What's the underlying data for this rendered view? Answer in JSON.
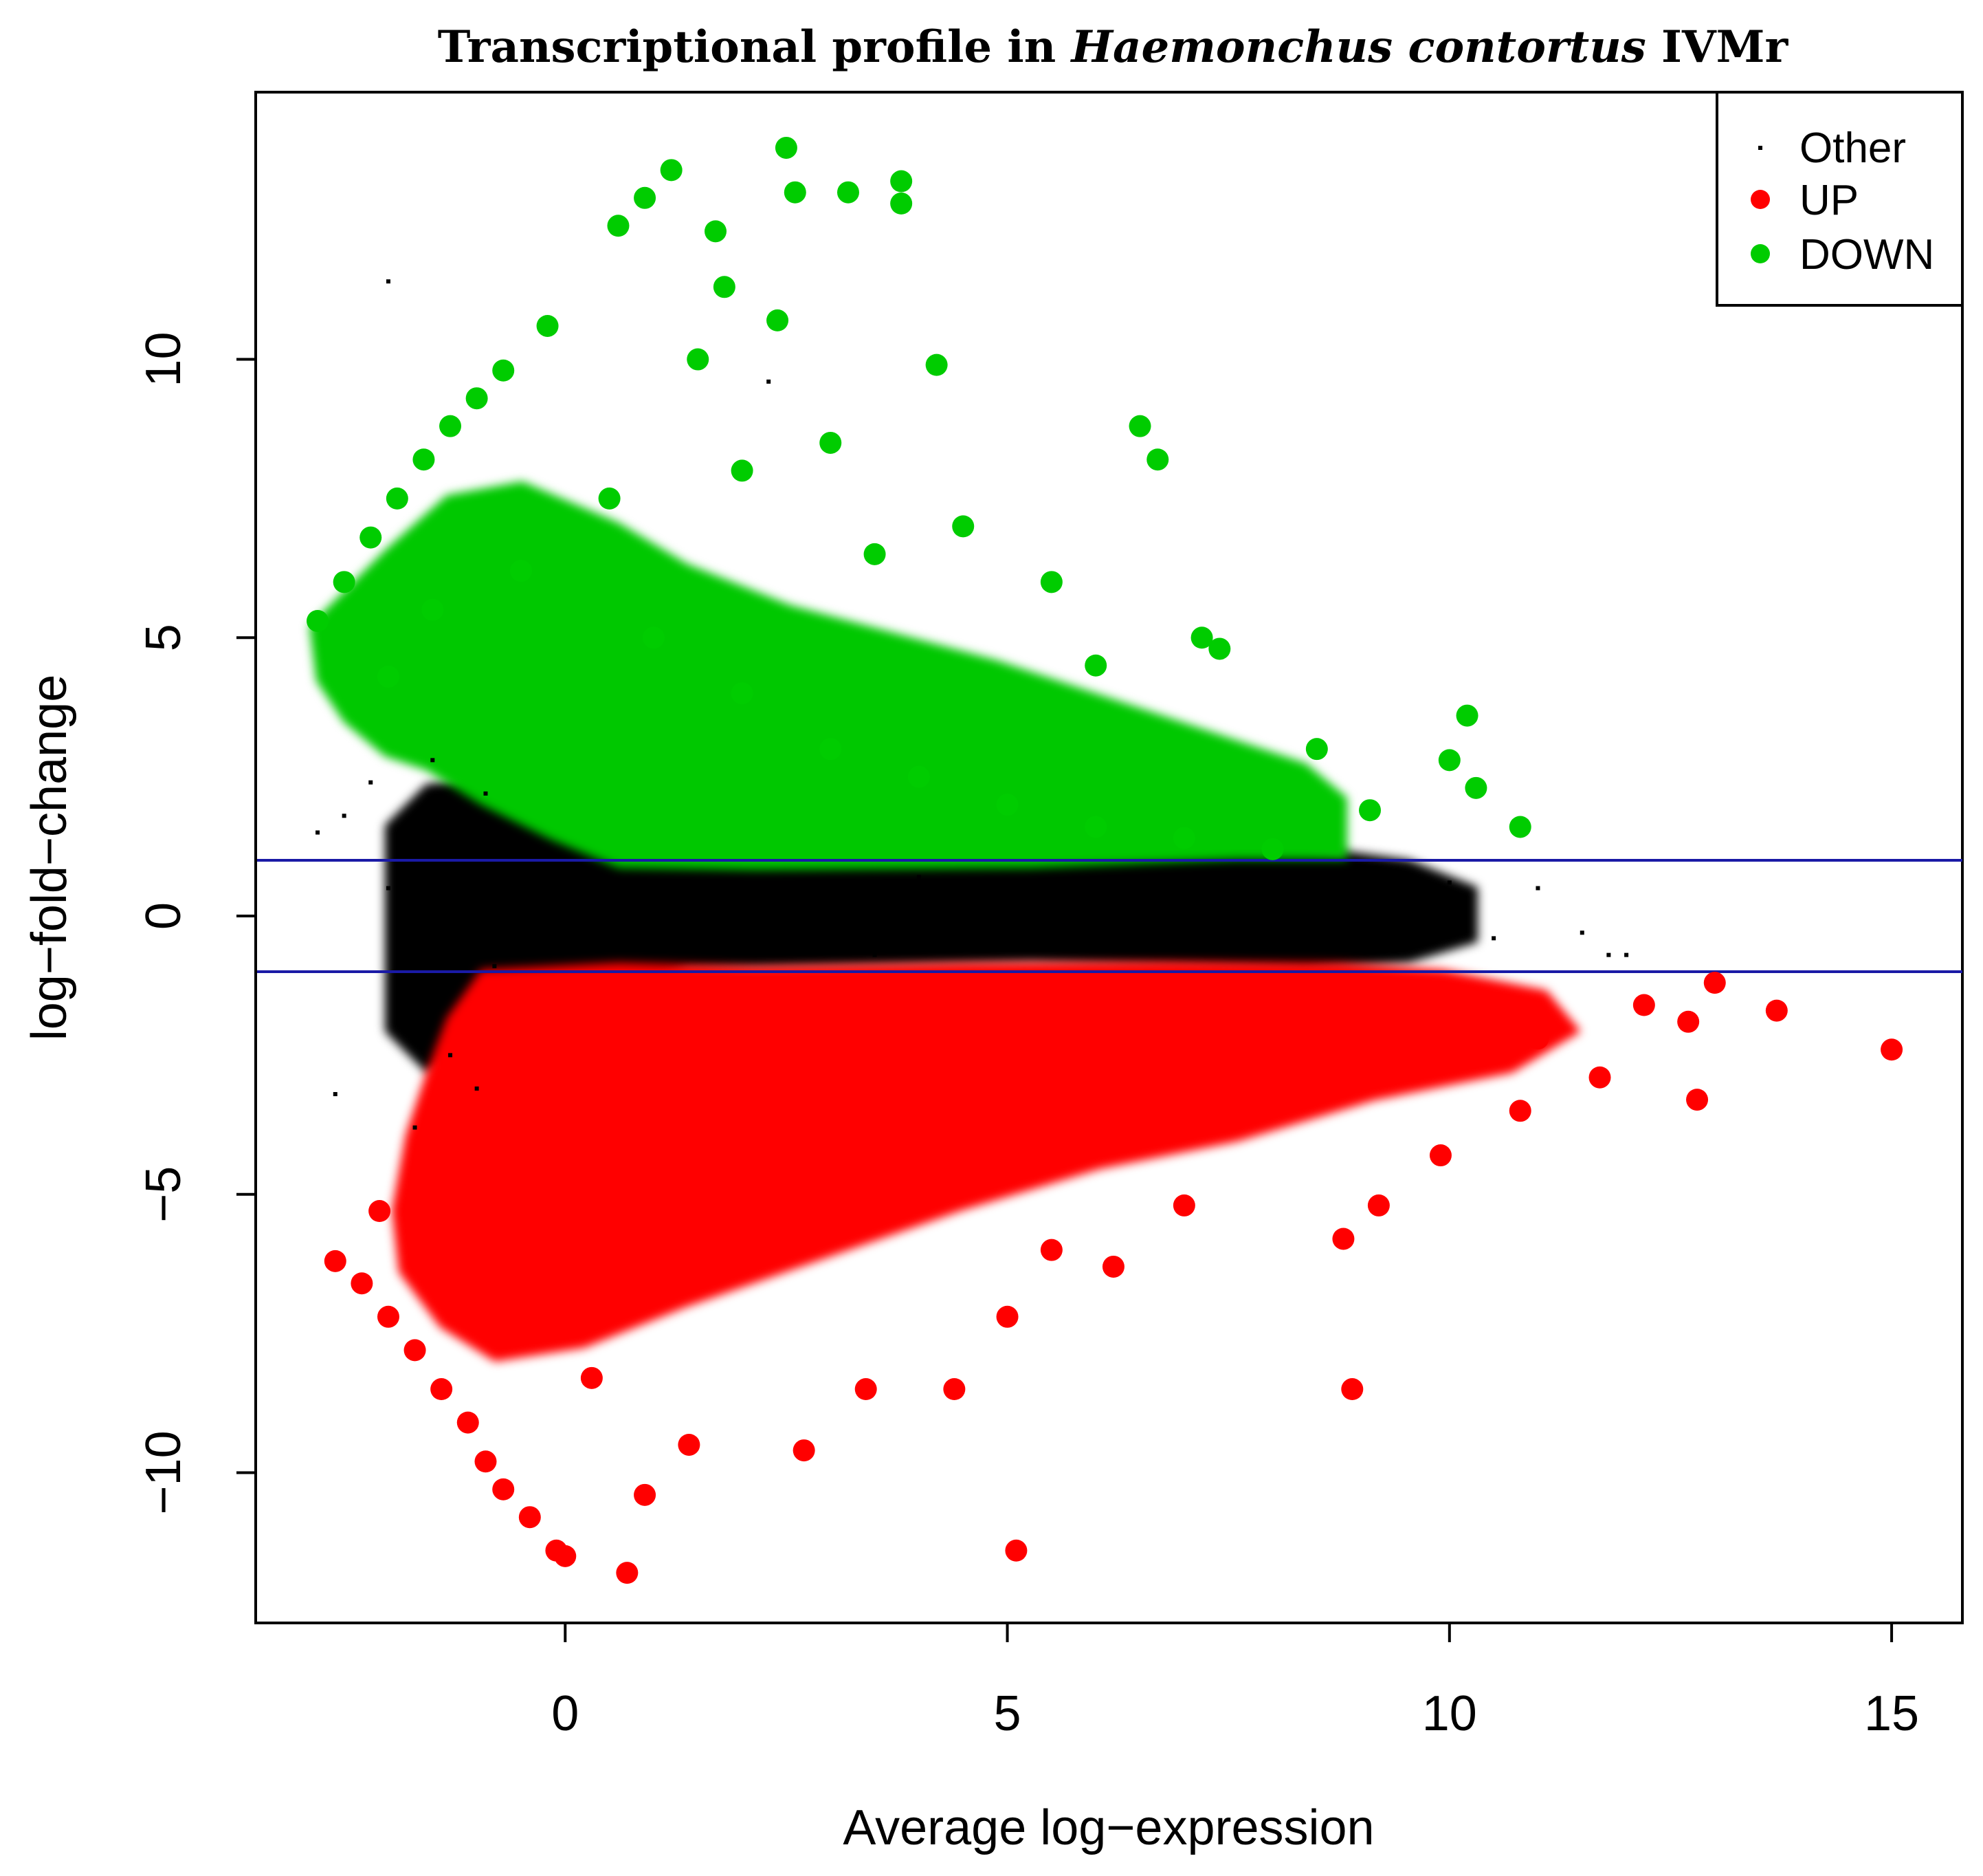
{
  "chart_data": {
    "type": "scatter",
    "title": {
      "prefix": "Transcriptional profile in ",
      "italic": "Haemonchus contortus",
      "suffix": " IVMr"
    },
    "xlabel": "Average log−expression",
    "ylabel": "log−fold−change",
    "xlim": [
      -3.5,
      15.8
    ],
    "ylim": [
      -12.7,
      14.8
    ],
    "x_ticks": [
      0,
      5,
      10,
      15
    ],
    "y_ticks": [
      -10,
      -5,
      0,
      5,
      10
    ],
    "x_tick_labels": [
      "0",
      "5",
      "10",
      "15"
    ],
    "y_tick_labels": [
      "−10",
      "−5",
      "0",
      "5",
      "10"
    ],
    "hlines": [
      1,
      -1
    ],
    "hline_color": "#1a1aa6",
    "legend": {
      "position": "top-right",
      "entries": [
        {
          "label": "Other",
          "color": "#000000",
          "marker": "small"
        },
        {
          "label": "UP",
          "color": "#ff0000",
          "marker": "large"
        },
        {
          "label": "DOWN",
          "color": "#00cc00",
          "marker": "large"
        }
      ]
    },
    "series": [
      {
        "name": "Other",
        "color": "#000000",
        "points": [
          [
            -2.8,
            1.5
          ],
          [
            -2.5,
            1.8
          ],
          [
            -2.2,
            2.4
          ],
          [
            -2.0,
            0.5
          ],
          [
            -1.8,
            -0.6
          ],
          [
            -1.6,
            -1.8
          ],
          [
            -1.5,
            2.8
          ],
          [
            -1.3,
            -2.5
          ],
          [
            -1.2,
            1.4
          ],
          [
            -1.0,
            -3.1
          ],
          [
            -0.9,
            2.2
          ],
          [
            -0.8,
            -0.9
          ],
          [
            -0.7,
            0.6
          ],
          [
            -0.5,
            -0.3
          ],
          [
            -0.3,
            0.8
          ],
          [
            0.0,
            -0.4
          ],
          [
            0.3,
            0.5
          ],
          [
            0.5,
            -0.6
          ],
          [
            1.0,
            0.3
          ],
          [
            1.5,
            -0.2
          ],
          [
            2.0,
            0.6
          ],
          [
            2.5,
            -0.5
          ],
          [
            3.0,
            0.4
          ],
          [
            3.5,
            -0.7
          ],
          [
            4.0,
            0.7
          ],
          [
            4.5,
            -0.4
          ],
          [
            5.0,
            0.2
          ],
          [
            5.5,
            -0.6
          ],
          [
            6.0,
            0.5
          ],
          [
            6.5,
            -0.3
          ],
          [
            7.0,
            0.6
          ],
          [
            7.5,
            -0.5
          ],
          [
            8.0,
            0.4
          ],
          [
            8.5,
            -0.6
          ],
          [
            9.0,
            0.3
          ],
          [
            9.5,
            -0.5
          ],
          [
            10.0,
            0.6
          ],
          [
            10.5,
            -0.4
          ],
          [
            11.0,
            0.5
          ],
          [
            11.5,
            -0.3
          ],
          [
            11.8,
            -0.7
          ],
          [
            12.0,
            -0.7
          ],
          [
            -2.0,
            11.4
          ],
          [
            2.3,
            9.6
          ],
          [
            -1.7,
            -3.8
          ],
          [
            -2.6,
            -3.2
          ]
        ]
      },
      {
        "name": "UP",
        "color": "#ff0000",
        "points": [
          [
            -2.6,
            -6.2
          ],
          [
            -2.3,
            -6.6
          ],
          [
            -2.0,
            -7.2
          ],
          [
            -1.7,
            -7.8
          ],
          [
            -1.4,
            -8.5
          ],
          [
            -1.1,
            -9.1
          ],
          [
            -0.9,
            -9.8
          ],
          [
            -0.7,
            -10.3
          ],
          [
            -0.4,
            -10.8
          ],
          [
            -0.1,
            -11.4
          ],
          [
            0.0,
            -11.5
          ],
          [
            0.7,
            -11.8
          ],
          [
            -2.1,
            -5.3
          ],
          [
            -1.6,
            -4.4
          ],
          [
            -1.2,
            -5.8
          ],
          [
            -0.6,
            -6.9
          ],
          [
            0.3,
            -8.3
          ],
          [
            0.9,
            -10.4
          ],
          [
            1.4,
            -9.5
          ],
          [
            2.7,
            -9.6
          ],
          [
            3.4,
            -8.5
          ],
          [
            4.4,
            -8.5
          ],
          [
            5.1,
            -11.4
          ],
          [
            5.0,
            -7.2
          ],
          [
            6.2,
            -6.3
          ],
          [
            8.9,
            -8.5
          ],
          [
            9.2,
            -5.2
          ],
          [
            9.9,
            -4.3
          ],
          [
            10.8,
            -3.5
          ],
          [
            11.7,
            -2.9
          ],
          [
            12.2,
            -1.6
          ],
          [
            12.8,
            -3.3
          ],
          [
            13.0,
            -1.2
          ],
          [
            13.7,
            -1.7
          ],
          [
            15.0,
            -2.4
          ],
          [
            11.0,
            -2.2
          ],
          [
            12.7,
            -1.9
          ],
          [
            2.0,
            -3.0
          ],
          [
            4.0,
            -4.5
          ],
          [
            6.0,
            -3.0
          ],
          [
            8.0,
            -2.0
          ],
          [
            10.0,
            -1.5
          ],
          [
            7.0,
            -5.2
          ],
          [
            1.0,
            -4.0
          ],
          [
            3.0,
            -5.5
          ],
          [
            5.5,
            -6.0
          ],
          [
            8.8,
            -5.8
          ]
        ]
      },
      {
        "name": "DOWN",
        "color": "#00cc00",
        "points": [
          [
            -2.8,
            5.3
          ],
          [
            -2.5,
            6.0
          ],
          [
            -2.2,
            6.8
          ],
          [
            -1.9,
            7.5
          ],
          [
            -1.6,
            8.2
          ],
          [
            -1.3,
            8.8
          ],
          [
            -1.0,
            9.3
          ],
          [
            -0.7,
            9.8
          ],
          [
            -0.2,
            10.6
          ],
          [
            0.6,
            12.4
          ],
          [
            0.9,
            12.9
          ],
          [
            1.2,
            13.4
          ],
          [
            2.5,
            13.8
          ],
          [
            2.6,
            13.0
          ],
          [
            3.2,
            13.0
          ],
          [
            3.8,
            13.2
          ],
          [
            3.8,
            12.8
          ],
          [
            1.7,
            12.3
          ],
          [
            1.8,
            11.3
          ],
          [
            2.4,
            10.7
          ],
          [
            4.2,
            9.9
          ],
          [
            6.5,
            8.8
          ],
          [
            6.7,
            8.2
          ],
          [
            7.2,
            5.0
          ],
          [
            7.4,
            4.8
          ],
          [
            8.5,
            3.0
          ],
          [
            9.1,
            1.9
          ],
          [
            10.2,
            3.6
          ],
          [
            10.0,
            2.8
          ],
          [
            10.3,
            2.3
          ],
          [
            10.8,
            1.6
          ],
          [
            -2.0,
            4.3
          ],
          [
            -1.5,
            5.5
          ],
          [
            -0.5,
            6.2
          ],
          [
            0.5,
            7.5
          ],
          [
            1.0,
            5.0
          ],
          [
            2.0,
            4.0
          ],
          [
            3.0,
            3.0
          ],
          [
            4.0,
            2.5
          ],
          [
            5.0,
            2.0
          ],
          [
            6.0,
            1.6
          ],
          [
            7.0,
            1.4
          ],
          [
            8.0,
            1.2
          ],
          [
            2.0,
            8.0
          ],
          [
            3.0,
            8.5
          ],
          [
            4.5,
            7.0
          ],
          [
            5.5,
            6.0
          ],
          [
            6.0,
            4.5
          ],
          [
            1.5,
            10.0
          ],
          [
            3.5,
            6.5
          ]
        ]
      }
    ]
  }
}
